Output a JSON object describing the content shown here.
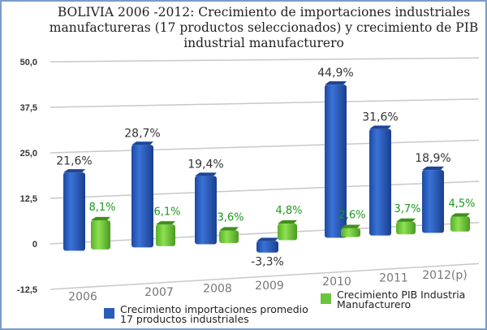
{
  "chart_data": {
    "type": "bar",
    "title": "BOLIVIA 2006 -2012: Crecimiento de importaciones industriales manufactureras (17 productos seleccionados) y crecimiento de PIB industrial manufacturero",
    "title_lines": [
      "BOLIVIA 2006 -2012: Crecimiento de importaciones industriales",
      "manufactureras (17 productos seleccionados) y crecimiento de PIB",
      "industrial manufacturero"
    ],
    "xlabel": "",
    "ylabel": "",
    "categories": [
      "2006",
      "2007",
      "2008",
      "2009",
      "2010",
      "2011",
      "2012(p)"
    ],
    "ylim": [
      -12.5,
      50.0
    ],
    "yticks": [
      "50,0",
      "37,5",
      "25,0",
      "12,5",
      "0",
      "-12,5"
    ],
    "ytick_values": [
      50,
      37.5,
      25,
      12.5,
      0,
      -12.5
    ],
    "grid": true,
    "legend_position": "bottom",
    "series": [
      {
        "name": "Crecimiento importaciones promedio 17 productos industriales",
        "legend_lines": [
          "Crecimiento importaciones promedio",
          "17 productos industriales"
        ],
        "color": "#2a5cb8",
        "values": [
          21.6,
          28.7,
          19.4,
          -3.3,
          44.9,
          31.6,
          18.9
        ],
        "labels": [
          "21,6%",
          "28,7%",
          "19,4%",
          "-3,3%",
          "44,9%",
          "31,6%",
          "18,9%"
        ]
      },
      {
        "name": "Crecimiento PIB Industria Manufacturero",
        "legend_lines": [
          "Crecimiento PIB Industria",
          "Manufacturero"
        ],
        "color": "#6cc43a",
        "values": [
          8.1,
          6.1,
          3.6,
          4.8,
          2.6,
          3.7,
          4.5
        ],
        "labels": [
          "8,1%",
          "6,1%",
          "3,6%",
          "4,8%",
          "2,6%",
          "3,7%",
          "4,5%"
        ]
      }
    ]
  }
}
